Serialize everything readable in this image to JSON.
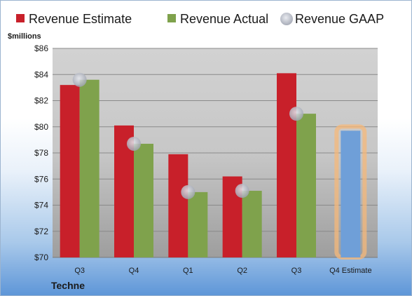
{
  "chart_data": {
    "type": "bar",
    "ylabel": "$millions",
    "ylim": [
      70,
      86
    ],
    "yticks": [
      "$70",
      "$72",
      "$74",
      "$76",
      "$78",
      "$80",
      "$82",
      "$84",
      "$86"
    ],
    "categories": [
      "Q3",
      "Q4",
      "Q1",
      "Q2",
      "Q3",
      "Q4 Estimate"
    ],
    "series": [
      {
        "name": "Revenue Estimate",
        "color": "#c8202a",
        "values": [
          83.2,
          80.1,
          77.9,
          76.2,
          84.1,
          null
        ]
      },
      {
        "name": "Revenue Actual",
        "color": "#7fa24c",
        "values": [
          83.6,
          78.7,
          75.0,
          75.1,
          81.0,
          79.7
        ]
      },
      {
        "name": "Revenue GAAP",
        "color": "#b8bcc8",
        "values": [
          83.6,
          78.7,
          75.0,
          75.1,
          81.0,
          null
        ]
      }
    ],
    "highlight": {
      "category": "Q4 Estimate",
      "color": "#6f9fd8",
      "glow": "#f5b87a"
    },
    "grid": true,
    "legend": "top"
  },
  "company": "Techne"
}
